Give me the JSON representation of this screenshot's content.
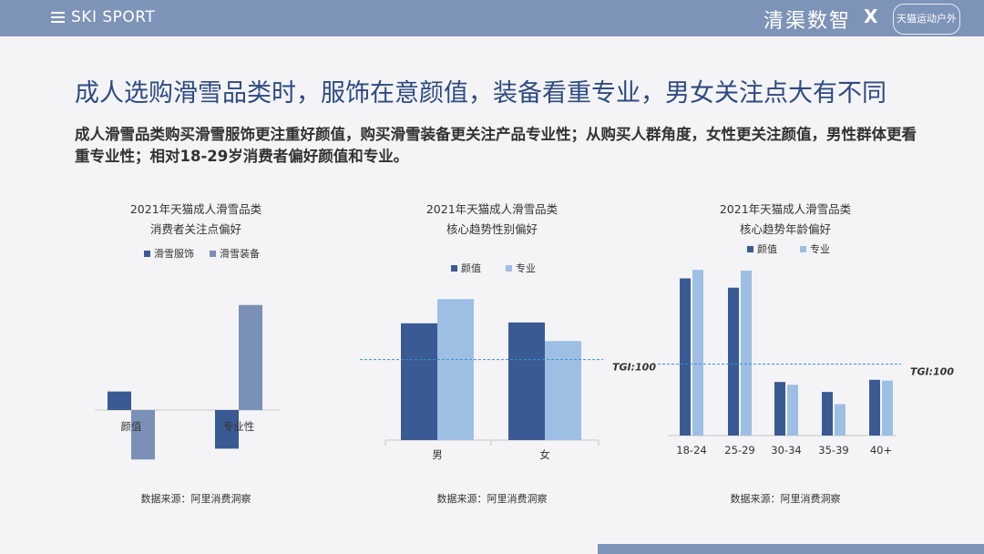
{
  "header": {
    "brand": "SKI SPORT",
    "partner": "清渠数智",
    "x_mark": "X",
    "partner_logo_text": "天猫运动户外",
    "colors": {
      "bar": "#7d93b8",
      "title": "#2d4a82"
    }
  },
  "title": "成人选购滑雪品类时，服饰在意颜值，装备看重专业，男女关注点大有不同",
  "subtitle": "成人滑雪品类购买滑雪服饰更注重好颜值，购买滑雪装备更关注产品专业性；从购买人群角度，女性更关注颜值，男性群体更看重专业性；相对18-29岁消费者偏好颜值和专业。",
  "chart_data": [
    {
      "type": "bar",
      "title": "2021年天猫成人滑雪品类",
      "subtitle": "消费者关注点偏好",
      "categories": [
        "颜值",
        "专业性"
      ],
      "series": [
        {
          "name": "滑雪服饰",
          "values": [
            12,
            -25
          ],
          "color": "#3a5a94"
        },
        {
          "name": "滑雪装备",
          "values": [
            -32,
            68
          ],
          "color": "#7a90b6"
        }
      ],
      "ylim": [
        -35,
        70
      ],
      "source": "数据来源：阿里消费洞察"
    },
    {
      "type": "bar",
      "title": "2021年天猫成人滑雪品类",
      "subtitle": "核心趋势性别偏好",
      "categories": [
        "男",
        "女"
      ],
      "series": [
        {
          "name": "颜值",
          "values": [
            145,
            146
          ],
          "color": "#3a5a94"
        },
        {
          "name": "专业",
          "values": [
            175,
            123
          ],
          "color": "#9ebfe4"
        }
      ],
      "ylim": [
        0,
        190
      ],
      "reference_line": {
        "value": 100,
        "label": "TGI:100"
      },
      "source": "数据来源：阿里消费洞察"
    },
    {
      "type": "bar",
      "title": "2021年天猫成人滑雪品类",
      "subtitle": "核心趋势年龄偏好",
      "categories": [
        "18-24",
        "25-29",
        "30-34",
        "35-39",
        "40+"
      ],
      "series": [
        {
          "name": "颜值",
          "values": [
            220,
            207,
            75,
            61,
            78
          ],
          "color": "#3a5a94"
        },
        {
          "name": "专业",
          "values": [
            232,
            231,
            71,
            44,
            77
          ],
          "color": "#9ebfe4"
        }
      ],
      "ylim": [
        0,
        250
      ],
      "reference_line": {
        "value": 100,
        "label": "TGI:100"
      },
      "source": "数据来源：阿里消费洞察"
    }
  ]
}
